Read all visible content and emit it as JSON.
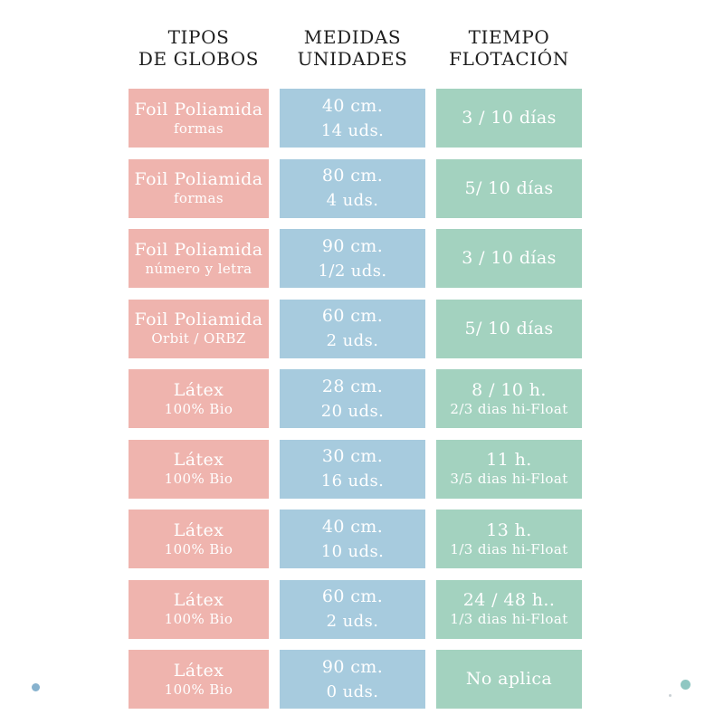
{
  "title": "Tabla de tipos de globos, medidas y tiempo de flotación",
  "colors": {
    "col-tipos": "#efb4ae",
    "col-medidas": "#a7cbde",
    "col-tiempo": "#a3d2bf",
    "header-text": "#1f1f1f",
    "cell-text": "#ffffff",
    "dot-blue": "#87b2ce",
    "dot-teal": "#8fc7c2",
    "dot-speck": "#a7b3b9"
  },
  "columns": [
    {
      "id": "tipos",
      "header_line1": "TIPOS",
      "header_line2": "DE GLOBOS"
    },
    {
      "id": "medidas",
      "header_line1": "MEDIDAS",
      "header_line2": "UNIDADES"
    },
    {
      "id": "tiempo",
      "header_line1": "TIEMPO",
      "header_line2": "FLOTACIÓN"
    }
  ],
  "rows": [
    {
      "tipo": "Foil Poliamida",
      "tipo_sub": "formas",
      "medida": "40 cm.",
      "unidades": "14 uds.",
      "tiempo": "3 / 10 días",
      "tiempo_sub": ""
    },
    {
      "tipo": "Foil Poliamida",
      "tipo_sub": "formas",
      "medida": "80 cm.",
      "unidades": "4 uds.",
      "tiempo": "5/ 10 días",
      "tiempo_sub": ""
    },
    {
      "tipo": "Foil Poliamida",
      "tipo_sub": "número y letra",
      "medida": "90 cm.",
      "unidades": "1/2 uds.",
      "tiempo": "3 / 10 días",
      "tiempo_sub": ""
    },
    {
      "tipo": "Foil Poliamida",
      "tipo_sub": "Orbit / ORBZ",
      "medida": "60 cm.",
      "unidades": "2 uds.",
      "tiempo": "5/ 10 días",
      "tiempo_sub": ""
    },
    {
      "tipo": "Látex",
      "tipo_sub": "100% Bio",
      "medida": "28 cm.",
      "unidades": "20 uds.",
      "tiempo": "8 / 10 h.",
      "tiempo_sub": "2/3 dias hi-Float"
    },
    {
      "tipo": "Látex",
      "tipo_sub": "100% Bio",
      "medida": "30 cm.",
      "unidades": "16 uds.",
      "tiempo": "11 h.",
      "tiempo_sub": "3/5 dias hi-Float"
    },
    {
      "tipo": "Látex",
      "tipo_sub": "100% Bio",
      "medida": "40 cm.",
      "unidades": "10 uds.",
      "tiempo": "13 h.",
      "tiempo_sub": "1/3 dias hi-Float"
    },
    {
      "tipo": "Látex",
      "tipo_sub": "100% Bio",
      "medida": "60 cm.",
      "unidades": "2 uds.",
      "tiempo": "24 / 48 h..",
      "tiempo_sub": "1/3 dias hi-Float"
    },
    {
      "tipo": "Látex",
      "tipo_sub": "100% Bio",
      "medida": "90 cm.",
      "unidades": "0 uds.",
      "tiempo": "No aplica",
      "tiempo_sub": ""
    }
  ],
  "chart_data": {
    "type": "table",
    "title": "",
    "columns": [
      "TIPOS DE GLOBOS",
      "MEDIDAS UNIDADES",
      "TIEMPO FLOTACIÓN"
    ],
    "rows": [
      [
        "Foil Poliamida (formas)",
        "40 cm. / 14 uds.",
        "3 / 10 días"
      ],
      [
        "Foil Poliamida (formas)",
        "80 cm. / 4 uds.",
        "5/ 10 días"
      ],
      [
        "Foil Poliamida (número y letra)",
        "90 cm. / 1/2 uds.",
        "3 / 10 días"
      ],
      [
        "Foil Poliamida (Orbit / ORBZ)",
        "60 cm. / 2 uds.",
        "5/ 10 días"
      ],
      [
        "Látex 100% Bio",
        "28 cm. / 20 uds.",
        "8 / 10 h. · 2/3 dias hi-Float"
      ],
      [
        "Látex 100% Bio",
        "30 cm. / 16 uds.",
        "11 h. · 3/5 dias hi-Float"
      ],
      [
        "Látex 100% Bio",
        "40 cm. / 10 uds.",
        "13 h. · 1/3 dias hi-Float"
      ],
      [
        "Látex 100% Bio",
        "60 cm. / 2 uds.",
        "24 / 48 h.. · 1/3 dias hi-Float"
      ],
      [
        "Látex 100% Bio",
        "90 cm. / 0 uds.",
        "No aplica"
      ]
    ],
    "layout": {
      "column_colors": [
        "#efb4ae",
        "#a7cbde",
        "#a3d2bf"
      ],
      "grid": false,
      "legend": "none"
    }
  }
}
